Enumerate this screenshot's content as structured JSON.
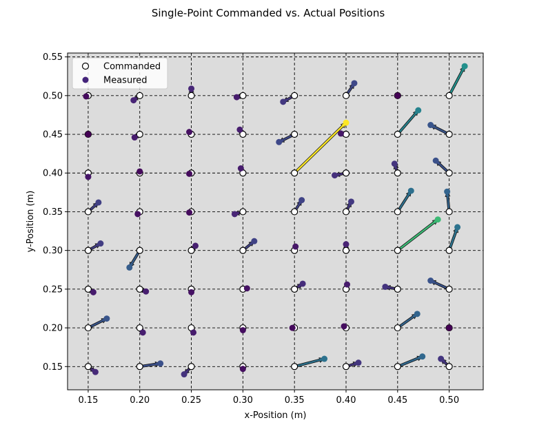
{
  "chart_data": {
    "type": "scatter",
    "title": "Single-Point Commanded vs. Actual Positions",
    "xlabel": "x-Position (m)",
    "ylabel": "y-Position (m)",
    "xlim": [
      0.13,
      0.533
    ],
    "ylim": [
      0.12,
      0.555
    ],
    "xticks": [
      0.15,
      0.2,
      0.25,
      0.3,
      0.35,
      0.4,
      0.45,
      0.5
    ],
    "yticks": [
      0.15,
      0.2,
      0.25,
      0.3,
      0.35,
      0.4,
      0.45,
      0.5,
      0.55
    ],
    "xtick_labels": [
      "0.15",
      "0.20",
      "0.25",
      "0.30",
      "0.35",
      "0.40",
      "0.45",
      "0.50"
    ],
    "ytick_labels": [
      "0.15",
      "0.20",
      "0.25",
      "0.30",
      "0.35",
      "0.40",
      "0.45",
      "0.50",
      "0.55"
    ],
    "grid": true,
    "legend_position": "top-left",
    "legend": [
      {
        "label": "Commanded",
        "marker": "open-circle"
      },
      {
        "label": "Measured",
        "marker": "filled-circle"
      }
    ],
    "colormap": "viridis",
    "background_color": "#dcdcdc",
    "series": [
      {
        "name": "Commanded",
        "points": [
          [
            0.15,
            0.5
          ],
          [
            0.2,
            0.5
          ],
          [
            0.25,
            0.5
          ],
          [
            0.3,
            0.5
          ],
          [
            0.35,
            0.5
          ],
          [
            0.4,
            0.5
          ],
          [
            0.45,
            0.5
          ],
          [
            0.5,
            0.5
          ],
          [
            0.15,
            0.45
          ],
          [
            0.2,
            0.45
          ],
          [
            0.25,
            0.45
          ],
          [
            0.3,
            0.45
          ],
          [
            0.35,
            0.45
          ],
          [
            0.4,
            0.45
          ],
          [
            0.45,
            0.45
          ],
          [
            0.5,
            0.45
          ],
          [
            0.15,
            0.4
          ],
          [
            0.2,
            0.4
          ],
          [
            0.25,
            0.4
          ],
          [
            0.3,
            0.4
          ],
          [
            0.35,
            0.4
          ],
          [
            0.4,
            0.4
          ],
          [
            0.45,
            0.4
          ],
          [
            0.5,
            0.4
          ],
          [
            0.15,
            0.35
          ],
          [
            0.2,
            0.35
          ],
          [
            0.25,
            0.35
          ],
          [
            0.3,
            0.35
          ],
          [
            0.35,
            0.35
          ],
          [
            0.4,
            0.35
          ],
          [
            0.45,
            0.35
          ],
          [
            0.5,
            0.35
          ],
          [
            0.15,
            0.3
          ],
          [
            0.2,
            0.3
          ],
          [
            0.25,
            0.3
          ],
          [
            0.3,
            0.3
          ],
          [
            0.35,
            0.3
          ],
          [
            0.4,
            0.3
          ],
          [
            0.45,
            0.3
          ],
          [
            0.5,
            0.3
          ],
          [
            0.15,
            0.25
          ],
          [
            0.2,
            0.25
          ],
          [
            0.25,
            0.25
          ],
          [
            0.3,
            0.25
          ],
          [
            0.35,
            0.25
          ],
          [
            0.4,
            0.25
          ],
          [
            0.45,
            0.25
          ],
          [
            0.5,
            0.25
          ],
          [
            0.15,
            0.2
          ],
          [
            0.2,
            0.2
          ],
          [
            0.25,
            0.2
          ],
          [
            0.3,
            0.2
          ],
          [
            0.35,
            0.2
          ],
          [
            0.4,
            0.2
          ],
          [
            0.45,
            0.2
          ],
          [
            0.5,
            0.2
          ],
          [
            0.15,
            0.15
          ],
          [
            0.2,
            0.15
          ],
          [
            0.25,
            0.15
          ],
          [
            0.3,
            0.15
          ],
          [
            0.35,
            0.15
          ],
          [
            0.4,
            0.15
          ],
          [
            0.45,
            0.15
          ],
          [
            0.5,
            0.15
          ]
        ]
      },
      {
        "name": "Measured",
        "points": [
          [
            0.148,
            0.499
          ],
          [
            0.194,
            0.494
          ],
          [
            0.25,
            0.509
          ],
          [
            0.294,
            0.498
          ],
          [
            0.339,
            0.492
          ],
          [
            0.408,
            0.516
          ],
          [
            0.45,
            0.5
          ],
          [
            0.515,
            0.538
          ],
          [
            0.15,
            0.45
          ],
          [
            0.195,
            0.446
          ],
          [
            0.248,
            0.453
          ],
          [
            0.297,
            0.456
          ],
          [
            0.335,
            0.44
          ],
          [
            0.395,
            0.451
          ],
          [
            0.47,
            0.481
          ],
          [
            0.482,
            0.462
          ],
          [
            0.15,
            0.395
          ],
          [
            0.2,
            0.402
          ],
          [
            0.248,
            0.399
          ],
          [
            0.298,
            0.406
          ],
          [
            0.4,
            0.465
          ],
          [
            0.389,
            0.397
          ],
          [
            0.447,
            0.412
          ],
          [
            0.487,
            0.416
          ],
          [
            0.16,
            0.362
          ],
          [
            0.198,
            0.347
          ],
          [
            0.248,
            0.349
          ],
          [
            0.292,
            0.347
          ],
          [
            0.357,
            0.365
          ],
          [
            0.405,
            0.363
          ],
          [
            0.463,
            0.377
          ],
          [
            0.498,
            0.376
          ],
          [
            0.162,
            0.309
          ],
          [
            0.19,
            0.278
          ],
          [
            0.254,
            0.306
          ],
          [
            0.311,
            0.312
          ],
          [
            0.351,
            0.305
          ],
          [
            0.4,
            0.308
          ],
          [
            0.489,
            0.34
          ],
          [
            0.508,
            0.33
          ],
          [
            0.155,
            0.246
          ],
          [
            0.206,
            0.247
          ],
          [
            0.25,
            0.246
          ],
          [
            0.304,
            0.251
          ],
          [
            0.358,
            0.257
          ],
          [
            0.401,
            0.256
          ],
          [
            0.438,
            0.253
          ],
          [
            0.482,
            0.261
          ],
          [
            0.168,
            0.212
          ],
          [
            0.203,
            0.194
          ],
          [
            0.252,
            0.194
          ],
          [
            0.3,
            0.197
          ],
          [
            0.348,
            0.2
          ],
          [
            0.398,
            0.202
          ],
          [
            0.469,
            0.218
          ],
          [
            0.5,
            0.2
          ],
          [
            0.157,
            0.143
          ],
          [
            0.22,
            0.154
          ],
          [
            0.243,
            0.14
          ],
          [
            0.3,
            0.147
          ],
          [
            0.379,
            0.16
          ],
          [
            0.412,
            0.155
          ],
          [
            0.474,
            0.163
          ],
          [
            0.492,
            0.16
          ]
        ]
      }
    ]
  }
}
